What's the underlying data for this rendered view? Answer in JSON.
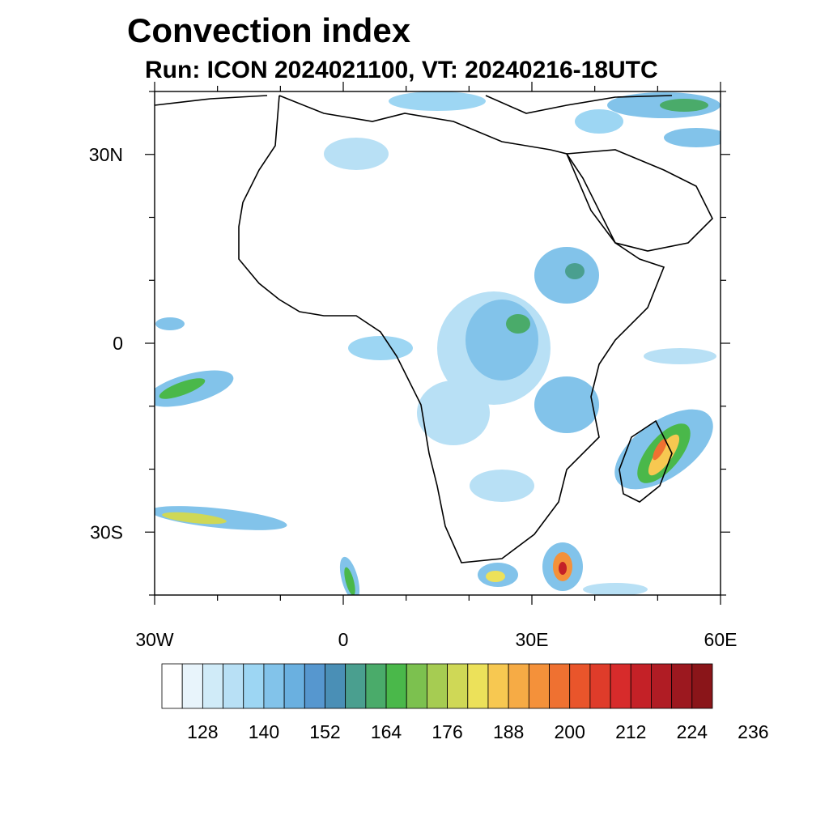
{
  "title": "Convection index",
  "subtitle": "Run: ICON 2024021100,  VT: 20240216-18UTC",
  "map": {
    "lon_range": [
      -30,
      60
    ],
    "lat_range": [
      -40,
      40
    ],
    "lon_ticks": [
      {
        "value": -30,
        "label": "30W"
      },
      {
        "value": 0,
        "label": "0"
      },
      {
        "value": 30,
        "label": "30E"
      },
      {
        "value": 60,
        "label": "60E"
      }
    ],
    "lat_ticks": [
      {
        "value": 30,
        "label": "30N"
      },
      {
        "value": 0,
        "label": "0"
      },
      {
        "value": -30,
        "label": "30S"
      }
    ]
  },
  "colorbar": {
    "colors": [
      "#ffffff",
      "#e8f4fb",
      "#d0ebf8",
      "#b8e0f5",
      "#9dd6f3",
      "#82c3ea",
      "#6ab0e0",
      "#5697cf",
      "#4a8fb6",
      "#4a9f8f",
      "#4aab6a",
      "#4ab84a",
      "#7cc14f",
      "#a6cc52",
      "#cfd856",
      "#ece15a",
      "#f7c851",
      "#f6ab45",
      "#f4913a",
      "#ef7131",
      "#e9552b",
      "#df3c2a",
      "#d72b2b",
      "#c42127",
      "#b01c24",
      "#9c181f",
      "#8a1519"
    ],
    "labels": [
      "128",
      "140",
      "152",
      "164",
      "176",
      "188",
      "200",
      "212",
      "224",
      "236"
    ],
    "label_boxes": [
      2,
      5,
      8,
      11,
      14,
      17,
      20,
      23,
      26,
      29
    ]
  }
}
